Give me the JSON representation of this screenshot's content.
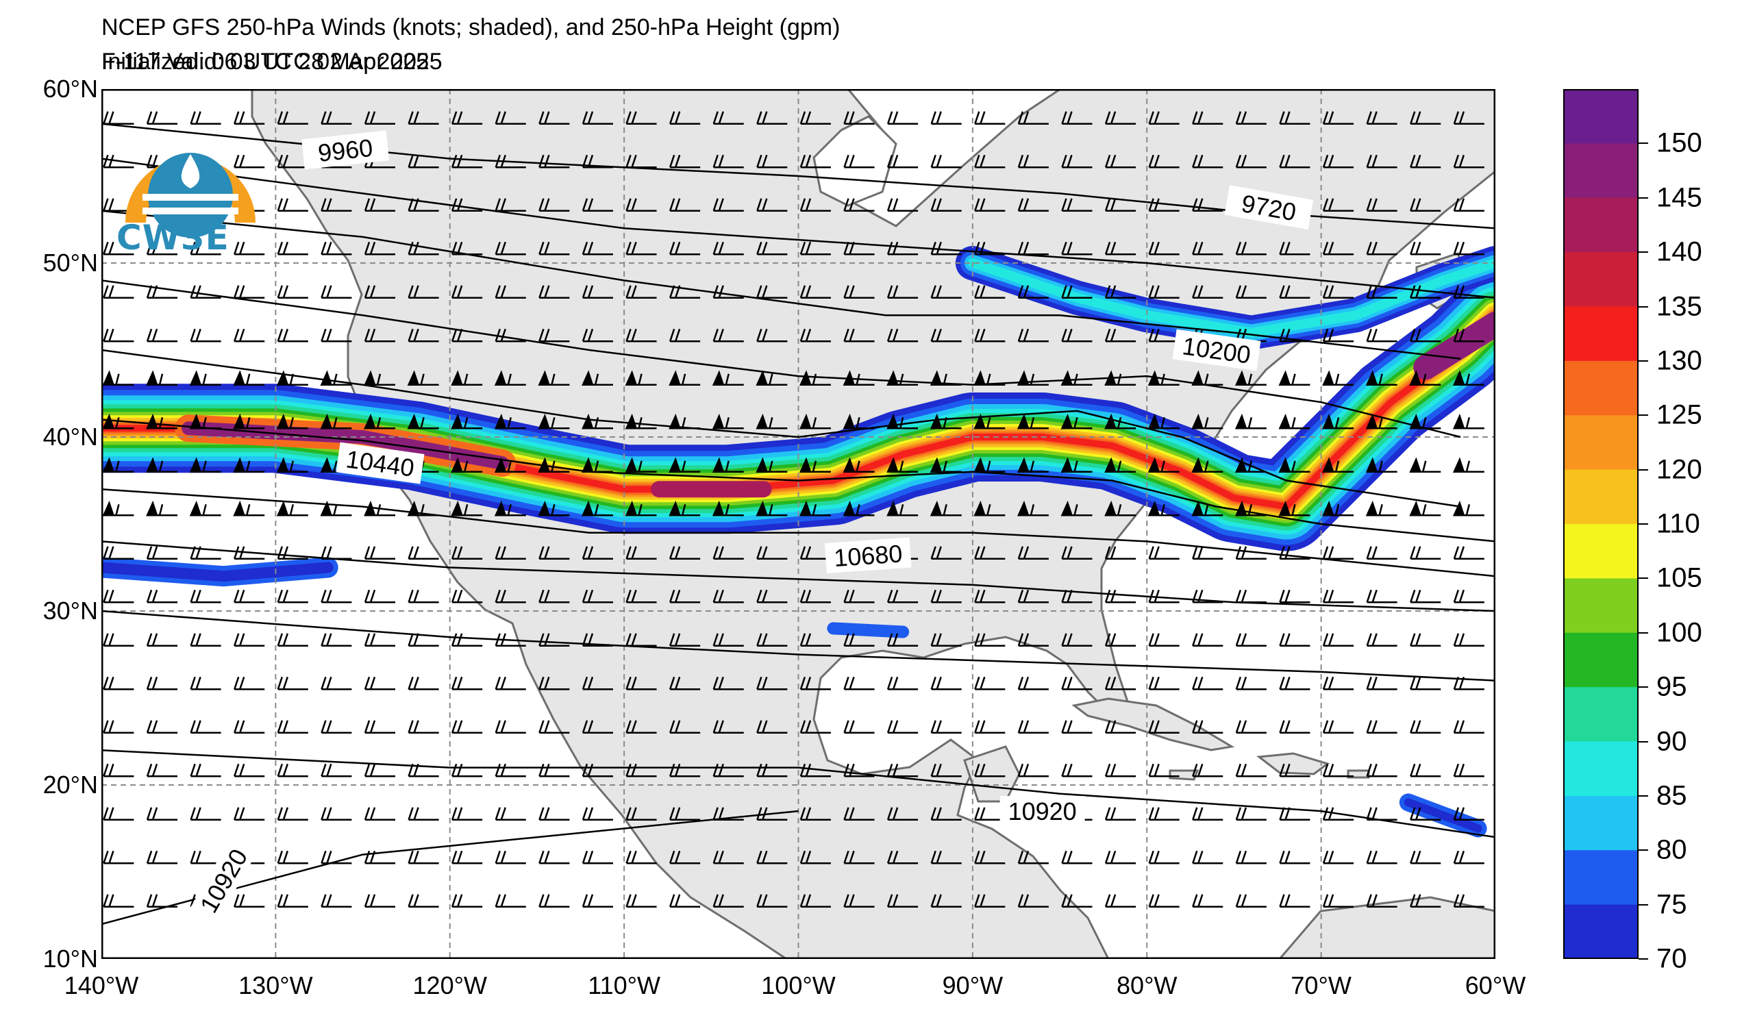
{
  "header": {
    "title": "NCEP GFS 250-hPa Winds (knots; shaded), and 250-hPa Height (gpm)",
    "initialized": "Initialized: 06 UTC 28 Mar 2025",
    "valid": "F-117  Valid: 03 UTC 02 Apr 2025"
  },
  "logo": {
    "text": "CW3E"
  },
  "map": {
    "extent": {
      "lon": [
        -140,
        -60
      ],
      "lat": [
        10,
        60
      ]
    },
    "lat_labels": [
      "60°N",
      "50°N",
      "40°N",
      "30°N",
      "20°N",
      "10°N"
    ],
    "lon_labels": [
      "140°W",
      "130°W",
      "120°W",
      "110°W",
      "100°W",
      "90°W",
      "80°W",
      "70°W",
      "60°W"
    ],
    "grid": "dashed",
    "height_contour_labels": [
      "9960",
      "9720",
      "10200",
      "10440",
      "10680",
      "10920",
      "10920"
    ]
  },
  "colorbar": {
    "labels": [
      "150",
      "145",
      "140",
      "135",
      "130",
      "125",
      "120",
      "110",
      "105",
      "100",
      "95",
      "90",
      "85",
      "80",
      "75",
      "70"
    ],
    "colors": [
      "#6a1f8e",
      "#8a1f7a",
      "#a81c5a",
      "#cc2038",
      "#f4201c",
      "#f66a1e",
      "#f7951e",
      "#f8c21e",
      "#f5f51e",
      "#7fcf1e",
      "#23b823",
      "#22d99a",
      "#22e8e0",
      "#22c4f4",
      "#1e5cf0",
      "#1e2cd0"
    ]
  },
  "colors": {
    "land": "#e6e6e6",
    "ocean": "#ffffff",
    "coast": "#6e6e6e",
    "logo_orange": "#f5a01e",
    "logo_blue": "#2a8cb8"
  }
}
